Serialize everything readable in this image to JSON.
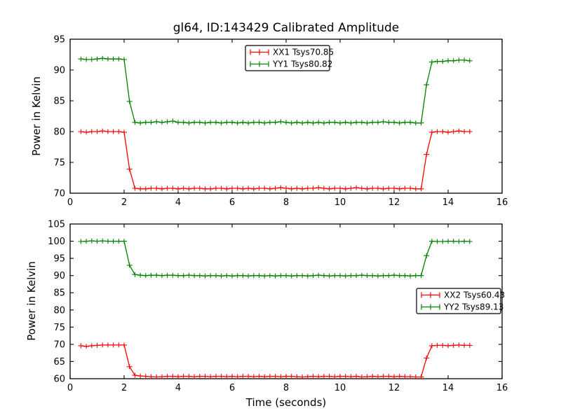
{
  "figure": {
    "title": "gl64, ID:143429 Calibrated Amplitude",
    "background": "#ffffff",
    "axis_color": "#000000"
  },
  "chart_data": [
    {
      "type": "line",
      "subplot": "top",
      "title": "gl64, ID:143429 Calibrated Amplitude",
      "xlabel": "",
      "ylabel": "Power in Kelvin",
      "xlim": [
        0,
        16
      ],
      "ylim": [
        70,
        95
      ],
      "xticks": [
        0,
        2,
        4,
        6,
        8,
        10,
        12,
        14,
        16
      ],
      "yticks": [
        70,
        75,
        80,
        85,
        90,
        95
      ],
      "grid": false,
      "legend_position": "upper center",
      "marker": "plus-errorbar",
      "x": [
        0.4,
        0.6,
        0.8,
        1.0,
        1.2,
        1.4,
        1.6,
        1.8,
        2.0,
        2.2,
        2.4,
        2.6,
        2.8,
        3.0,
        3.2,
        3.4,
        3.6,
        3.8,
        4.0,
        4.2,
        4.4,
        4.6,
        4.8,
        5.0,
        5.2,
        5.4,
        5.6,
        5.8,
        6.0,
        6.2,
        6.4,
        6.6,
        6.8,
        7.0,
        7.2,
        7.4,
        7.6,
        7.8,
        8.0,
        8.2,
        8.4,
        8.6,
        8.8,
        9.0,
        9.2,
        9.4,
        9.6,
        9.8,
        10.0,
        10.2,
        10.4,
        10.6,
        10.8,
        11.0,
        11.2,
        11.4,
        11.6,
        11.8,
        12.0,
        12.2,
        12.4,
        12.6,
        12.8,
        13.0,
        13.2,
        13.4,
        13.6,
        13.8,
        14.0,
        14.2,
        14.4,
        14.6,
        14.8
      ],
      "series": [
        {
          "id": "xx1",
          "name": "XX1 Tsys70.85",
          "color": "#ff0000",
          "values": [
            80.0,
            79.9,
            80.0,
            80.0,
            80.1,
            80.0,
            80.0,
            80.0,
            79.9,
            73.9,
            70.8,
            70.7,
            70.7,
            70.8,
            70.8,
            70.7,
            70.8,
            70.8,
            70.7,
            70.8,
            70.7,
            70.8,
            70.8,
            70.7,
            70.7,
            70.8,
            70.8,
            70.7,
            70.8,
            70.8,
            70.7,
            70.8,
            70.7,
            70.8,
            70.8,
            70.7,
            70.8,
            70.9,
            70.8,
            70.7,
            70.8,
            70.7,
            70.8,
            70.8,
            70.9,
            70.8,
            70.7,
            70.8,
            70.8,
            70.7,
            70.8,
            70.9,
            70.8,
            70.7,
            70.8,
            70.8,
            70.7,
            70.8,
            70.8,
            70.7,
            70.8,
            70.8,
            70.7,
            70.7,
            76.3,
            79.9,
            80.0,
            80.0,
            79.9,
            80.0,
            80.1,
            80.0,
            80.0
          ]
        },
        {
          "id": "yy1",
          "name": "YY1 Tsys80.82",
          "color": "#008000",
          "values": [
            91.8,
            91.7,
            91.7,
            91.8,
            91.9,
            91.8,
            91.8,
            91.8,
            91.7,
            84.9,
            81.5,
            81.4,
            81.5,
            81.5,
            81.6,
            81.5,
            81.6,
            81.7,
            81.5,
            81.5,
            81.4,
            81.5,
            81.5,
            81.4,
            81.5,
            81.5,
            81.4,
            81.5,
            81.5,
            81.4,
            81.5,
            81.4,
            81.5,
            81.5,
            81.4,
            81.5,
            81.5,
            81.6,
            81.5,
            81.4,
            81.5,
            81.4,
            81.5,
            81.4,
            81.5,
            81.4,
            81.5,
            81.5,
            81.4,
            81.5,
            81.4,
            81.5,
            81.5,
            81.4,
            81.5,
            81.5,
            81.6,
            81.5,
            81.5,
            81.4,
            81.5,
            81.5,
            81.4,
            81.4,
            87.6,
            91.3,
            91.4,
            91.4,
            91.5,
            91.5,
            91.6,
            91.6,
            91.5
          ]
        }
      ]
    },
    {
      "type": "line",
      "subplot": "bottom",
      "title": "",
      "xlabel": "Time (seconds)",
      "ylabel": "Power in Kelvin",
      "xlim": [
        0,
        16
      ],
      "ylim": [
        60,
        105
      ],
      "xticks": [
        0,
        2,
        4,
        6,
        8,
        10,
        12,
        14,
        16
      ],
      "yticks": [
        60,
        65,
        70,
        75,
        80,
        85,
        90,
        95,
        100,
        105
      ],
      "grid": false,
      "legend_position": "center right",
      "marker": "plus-errorbar",
      "x": [
        0.4,
        0.6,
        0.8,
        1.0,
        1.2,
        1.4,
        1.6,
        1.8,
        2.0,
        2.2,
        2.4,
        2.6,
        2.8,
        3.0,
        3.2,
        3.4,
        3.6,
        3.8,
        4.0,
        4.2,
        4.4,
        4.6,
        4.8,
        5.0,
        5.2,
        5.4,
        5.6,
        5.8,
        6.0,
        6.2,
        6.4,
        6.6,
        6.8,
        7.0,
        7.2,
        7.4,
        7.6,
        7.8,
        8.0,
        8.2,
        8.4,
        8.6,
        8.8,
        9.0,
        9.2,
        9.4,
        9.6,
        9.8,
        10.0,
        10.2,
        10.4,
        10.6,
        10.8,
        11.0,
        11.2,
        11.4,
        11.6,
        11.8,
        12.0,
        12.2,
        12.4,
        12.6,
        12.8,
        13.0,
        13.2,
        13.4,
        13.6,
        13.8,
        14.0,
        14.2,
        14.4,
        14.6,
        14.8
      ],
      "series": [
        {
          "id": "xx2",
          "name": "XX2 Tsys60.43",
          "color": "#ff0000",
          "values": [
            69.6,
            69.4,
            69.6,
            69.7,
            69.8,
            69.8,
            69.8,
            69.8,
            69.8,
            63.5,
            61.0,
            60.8,
            60.7,
            60.6,
            60.5,
            60.6,
            60.7,
            60.7,
            60.6,
            60.7,
            60.7,
            60.6,
            60.7,
            60.7,
            60.6,
            60.7,
            60.7,
            60.6,
            60.7,
            60.6,
            60.7,
            60.7,
            60.6,
            60.7,
            60.6,
            60.7,
            60.7,
            60.6,
            60.7,
            60.7,
            60.6,
            60.5,
            60.6,
            60.7,
            60.6,
            60.7,
            60.7,
            60.6,
            60.7,
            60.7,
            60.6,
            60.7,
            60.5,
            60.6,
            60.7,
            60.6,
            60.7,
            60.7,
            60.6,
            60.7,
            60.6,
            60.6,
            60.5,
            60.5,
            66.0,
            69.6,
            69.7,
            69.7,
            69.6,
            69.7,
            69.8,
            69.7,
            69.7
          ]
        },
        {
          "id": "yy2",
          "name": "YY2 Tsys89.13",
          "color": "#008000",
          "values": [
            99.9,
            100.0,
            100.1,
            100.0,
            100.1,
            100.0,
            100.0,
            100.0,
            100.0,
            93.0,
            90.3,
            90.1,
            90.0,
            90.1,
            90.1,
            90.0,
            90.1,
            90.1,
            90.0,
            90.0,
            90.1,
            90.0,
            90.0,
            89.9,
            90.0,
            90.0,
            89.9,
            90.0,
            89.9,
            90.0,
            90.0,
            89.9,
            90.0,
            90.0,
            89.9,
            90.0,
            89.9,
            90.0,
            90.0,
            89.9,
            90.0,
            90.0,
            89.9,
            90.0,
            90.1,
            90.0,
            89.9,
            90.0,
            90.0,
            89.9,
            90.0,
            90.0,
            90.1,
            90.0,
            90.0,
            89.9,
            90.0,
            90.0,
            90.1,
            90.0,
            90.0,
            89.9,
            90.0,
            90.0,
            95.8,
            100.0,
            99.9,
            99.9,
            100.0,
            100.0,
            99.9,
            100.0,
            99.9
          ]
        }
      ]
    }
  ]
}
